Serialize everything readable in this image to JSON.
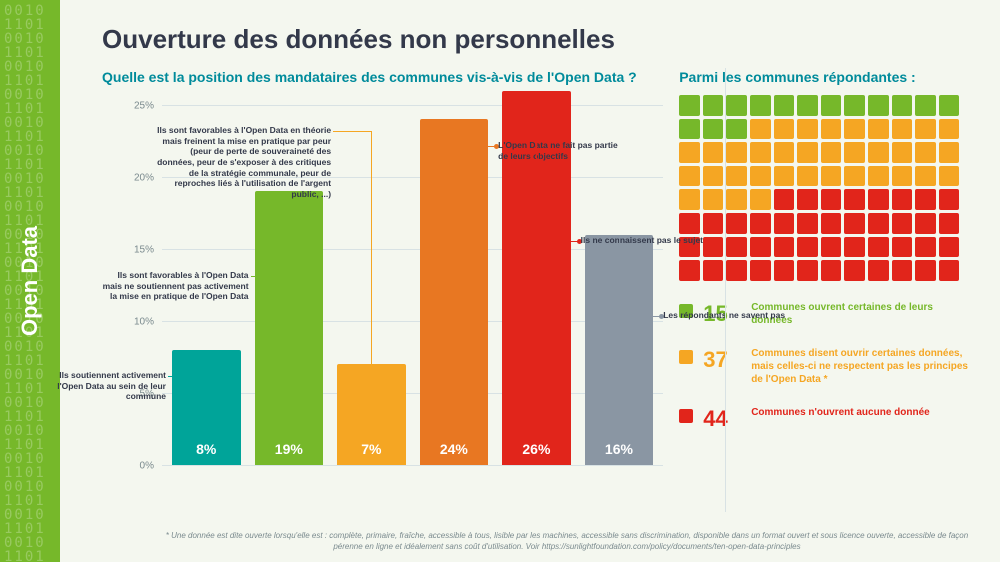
{
  "sidebar": {
    "label": "Open Data",
    "bg_color": "#76b82a"
  },
  "title": "Ouverture des données non personnelles",
  "chart": {
    "subtitle": "Quelle est la position des mandataires des communes vis-à-vis de l'Open Data ?",
    "type": "bar",
    "ylim": [
      0,
      25
    ],
    "ytick_step": 5,
    "yticks": [
      "0%",
      "5%",
      "10%",
      "15%",
      "20%",
      "25%"
    ],
    "grid_color": "#d8e2e4",
    "axis_label_color": "#7a8a8e",
    "bars": [
      {
        "value": 8,
        "label": "8%",
        "color": "#00a499",
        "annot": "Ils soutiennent activement l'Open Data au sein de leur commune",
        "annot_side": "left"
      },
      {
        "value": 19,
        "label": "19%",
        "color": "#76b82a",
        "annot": "Ils sont favorables à l'Open Data mais ne soutiennent pas activement la mise en pratique de l'Open Data",
        "annot_side": "left"
      },
      {
        "value": 7,
        "label": "7%",
        "color": "#f5a623",
        "annot": "Ils sont favorables à l'Open Data en théorie mais freinent la mise en pratique par peur (peur de perte de souveraineté des données, peur de s'exposer à des critiques de la stratégie communale, peur de reproches liés à l'utilisation de l'argent public, ...)",
        "annot_side": "left"
      },
      {
        "value": 24,
        "label": "24%",
        "color": "#e87722",
        "annot": "L'Open Data ne fait pas partie de leurs objectifs",
        "annot_side": "right"
      },
      {
        "value": 26,
        "label": "26%",
        "color": "#e1251b",
        "annot": "Ils ne connaissent pas le sujet",
        "annot_side": "right"
      },
      {
        "value": 16,
        "label": "16%",
        "color": "#8a96a3",
        "annot": "Les répondants ne savent pas",
        "annot_side": "right"
      }
    ]
  },
  "right": {
    "subtitle": "Parmi les communes répondantes :",
    "waffle": {
      "cols": 12,
      "rows": 8,
      "colors": {
        "green": "#76b82a",
        "yellow": "#f5a623",
        "red": "#e1251b"
      },
      "counts": {
        "green": 15,
        "yellow": 37,
        "red": 44
      }
    },
    "legend": [
      {
        "color": "#76b82a",
        "num": "15",
        "text": "Communes ouvrent certaines de leurs données"
      },
      {
        "color": "#f5a623",
        "num": "37",
        "text": "Communes disent ouvrir certaines données, mais celles-ci ne respectent pas les principes de l'Open Data *"
      },
      {
        "color": "#e1251b",
        "num": "44",
        "text": "Communes n'ouvrent aucune donnée"
      }
    ]
  },
  "footnote": "* Une donnée est dite ouverte lorsqu'elle est : complète, primaire, fraîche, accessible à tous, lisible par les machines, accessible sans discrimination, disponible dans un format ouvert et sous licence ouverte, accessible de façon pérenne en ligne et idéalement sans coût d'utilisation. Voir https://sunlightfoundation.com/policy/documents/ten-open-data-principles"
}
